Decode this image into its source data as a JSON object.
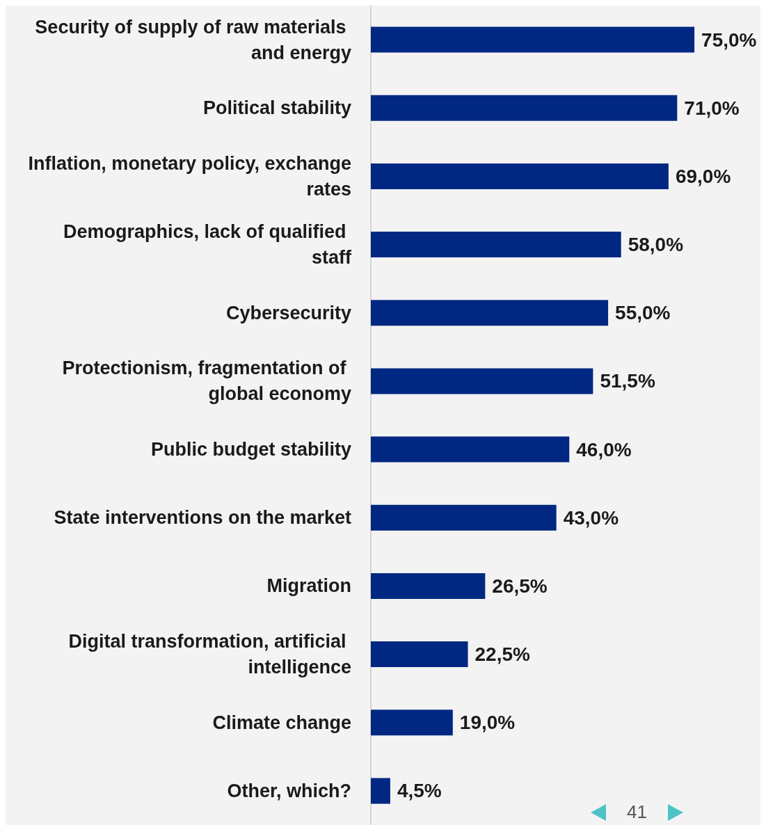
{
  "chart_data": {
    "type": "bar",
    "orientation": "horizontal",
    "categories": [
      "Security of supply of raw materials and energy",
      "Political stability",
      "Inflation, monetary policy, exchange rates",
      "Demographics, lack of qualified staff",
      "Cybersecurity",
      "Protectionism, fragmentation of global economy",
      "Public budget stability",
      "State interventions on the market",
      "Migration",
      "Digital transformation, artificial intelligence",
      "Climate change",
      "Other, which?"
    ],
    "values": [
      75.0,
      71.0,
      69.0,
      58.0,
      55.0,
      51.5,
      46.0,
      43.0,
      26.5,
      22.5,
      19.0,
      4.5
    ],
    "value_labels": [
      "75,0%",
      "71,0%",
      "69,0%",
      "58,0%",
      "55,0%",
      "51,5%",
      "46,0%",
      "43,0%",
      "26,5%",
      "22,5%",
      "19,0%",
      "4,5%"
    ],
    "color": "#002882",
    "annotations": [
      "41"
    ]
  }
}
